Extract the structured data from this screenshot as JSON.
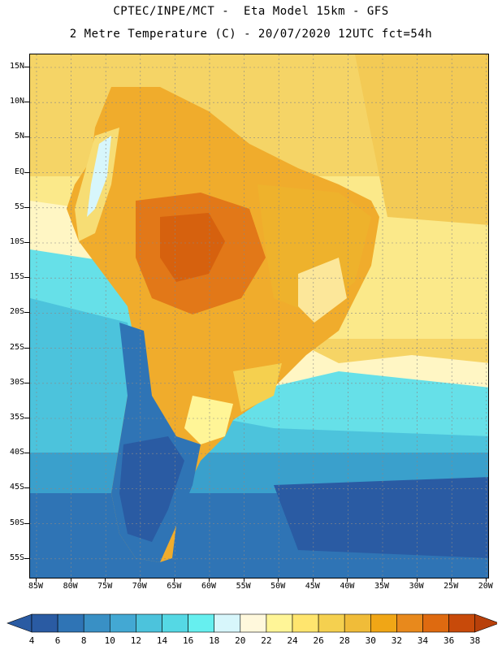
{
  "header": {
    "title_line1": "CPTEC/INPE/MCT -  Eta Model 15km - GFS",
    "title_line2": "2 Metre Temperature (C) - 20/07/2020 12UTC fct=54h"
  },
  "map": {
    "lat_labels": [
      "15N",
      "10N",
      "5N",
      "EQ",
      "5S",
      "10S",
      "15S",
      "20S",
      "25S",
      "30S",
      "35S",
      "40S",
      "45S",
      "50S",
      "55S"
    ],
    "lon_labels": [
      "85W",
      "80W",
      "75W",
      "70W",
      "65W",
      "60W",
      "55W",
      "50W",
      "45W",
      "40W",
      "35W",
      "30W",
      "25W",
      "20W"
    ]
  },
  "colorbar": {
    "labels": [
      "4",
      "6",
      "8",
      "10",
      "12",
      "14",
      "16",
      "18",
      "20",
      "22",
      "24",
      "26",
      "28",
      "30",
      "32",
      "34",
      "36",
      "38"
    ],
    "colors": [
      "#2a5ba3",
      "#2f74b5",
      "#3990c5",
      "#43a8d3",
      "#4cc3dc",
      "#55d8e4",
      "#66efef",
      "#d7f6fb",
      "#fff8dc",
      "#fff597",
      "#ffe56e",
      "#f5d04f",
      "#f0bc39",
      "#f0a616",
      "#e8891c",
      "#de6a10",
      "#c84a0a",
      "#b8400a"
    ],
    "left_arrow_color": "#2a5ba3",
    "right_arrow_color": "#b8400a"
  }
}
